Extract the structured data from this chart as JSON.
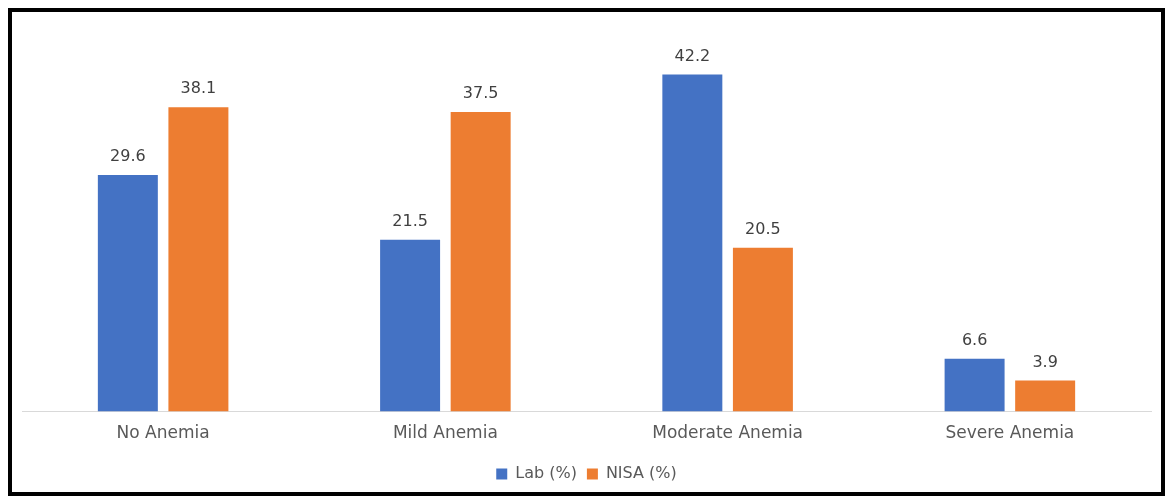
{
  "chart_data": {
    "type": "bar",
    "categories": [
      "No Anemia",
      "Mild Anemia",
      "Moderate Anemia",
      "Severe Anemia"
    ],
    "series": [
      {
        "name": "Lab (%)",
        "color": "#4472c4",
        "values": [
          29.6,
          21.5,
          42.2,
          6.6
        ]
      },
      {
        "name": "NISA (%)",
        "color": "#ed7d31",
        "values": [
          38.1,
          37.5,
          20.5,
          3.9
        ]
      }
    ],
    "data_labels": true,
    "legend": "bottom",
    "grid": false
  }
}
